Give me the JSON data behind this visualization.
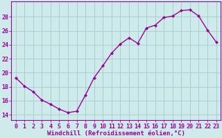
{
  "x": [
    0,
    1,
    2,
    3,
    4,
    5,
    6,
    7,
    8,
    9,
    10,
    11,
    12,
    13,
    14,
    15,
    16,
    17,
    18,
    19,
    20,
    21,
    22,
    23
  ],
  "y": [
    19.3,
    18.1,
    17.3,
    16.1,
    15.5,
    14.8,
    14.3,
    14.5,
    16.8,
    19.3,
    21.0,
    22.8,
    24.1,
    25.0,
    24.2,
    26.4,
    26.8,
    27.9,
    28.1,
    28.9,
    29.0,
    28.1,
    26.1,
    24.4
  ],
  "line_color": "#990099",
  "marker": "D",
  "marker_size": 2.2,
  "bg_color": "#ceeaea",
  "grid_color": "#aacece",
  "xlabel": "Windchill (Refroidissement éolien,°C)",
  "ytick_labels": [
    "14",
    "16",
    "18",
    "20",
    "22",
    "24",
    "26",
    "28"
  ],
  "ytick_values": [
    14,
    16,
    18,
    20,
    22,
    24,
    26,
    28
  ],
  "ylim": [
    13.2,
    30.2
  ],
  "xlim": [
    -0.5,
    23.5
  ],
  "tick_color": "#990099",
  "label_color": "#990099",
  "font_size": 6.0,
  "xlabel_font_size": 6.5,
  "linewidth": 1.0
}
